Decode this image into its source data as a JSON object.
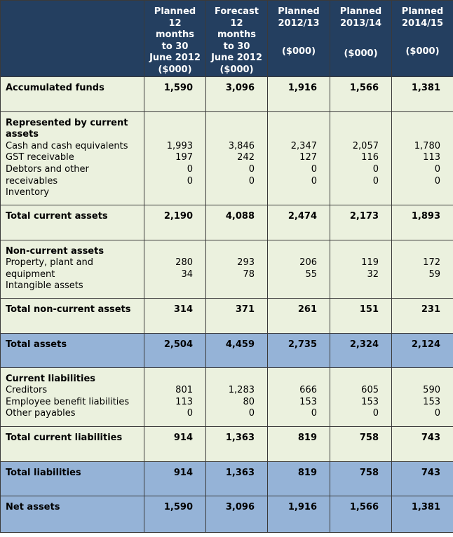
{
  "header": {
    "col1": [
      "Planned",
      "12",
      "months",
      "to 30",
      "June 2012",
      "($000)"
    ],
    "col2": [
      "Forecast",
      "12",
      "months",
      "to 30",
      "June 2012",
      "($000)"
    ],
    "col3": {
      "title": "Planned",
      "period": "2012/13",
      "unit": "($000)"
    },
    "col4": {
      "title": "Planned",
      "period": "2013/14",
      "unit": "($000)"
    },
    "col5": {
      "title": "Planned",
      "period": "2014/15",
      "unit": "($000)"
    }
  },
  "rows": {
    "accumulated_funds": {
      "label": "Accumulated funds",
      "values": [
        "1,590",
        "3,096",
        "1,916",
        "1,566",
        "1,381"
      ]
    },
    "current_assets": {
      "heading": "Represented by current assets",
      "items": [
        "Cash and cash equivalents",
        "GST receivable",
        "Debtors and other receivables",
        "Inventory"
      ],
      "values": [
        [
          "1,993",
          "197",
          "0",
          "0"
        ],
        [
          "3,846",
          "242",
          "0",
          "0"
        ],
        [
          "2,347",
          "127",
          "0",
          "0"
        ],
        [
          "2,057",
          "116",
          "0",
          "0"
        ],
        [
          "1,780",
          "113",
          "0",
          "0"
        ]
      ]
    },
    "total_current_assets": {
      "label": "Total current assets",
      "values": [
        "2,190",
        "4,088",
        "2,474",
        "2,173",
        "1,893"
      ]
    },
    "non_current_assets": {
      "heading": "Non-current assets",
      "items": [
        "Property, plant and equipment",
        "Intangible assets"
      ],
      "values": [
        [
          "280",
          "34"
        ],
        [
          "293",
          "78"
        ],
        [
          "206",
          "55"
        ],
        [
          "119",
          "32"
        ],
        [
          "172",
          "59"
        ]
      ]
    },
    "total_non_current_assets": {
      "label": "Total non-current assets",
      "values": [
        "314",
        "371",
        "261",
        "151",
        "231"
      ]
    },
    "total_assets": {
      "label": "Total assets",
      "values": [
        "2,504",
        "4,459",
        "2,735",
        "2,324",
        "2,124"
      ]
    },
    "current_liabilities": {
      "heading": "Current liabilities",
      "items": [
        "Creditors",
        "Employee benefit liabilities",
        "Other payables"
      ],
      "values": [
        [
          "801",
          "113",
          "0"
        ],
        [
          "1,283",
          "80",
          "0"
        ],
        [
          "666",
          "153",
          "0"
        ],
        [
          "605",
          "153",
          "0"
        ],
        [
          "590",
          "153",
          "0"
        ]
      ]
    },
    "total_current_liabilities": {
      "label": "Total current liabilities",
      "values": [
        "914",
        "1,363",
        "819",
        "758",
        "743"
      ]
    },
    "total_liabilities": {
      "label": "Total liabilities",
      "values": [
        "914",
        "1,363",
        "819",
        "758",
        "743"
      ]
    },
    "net_assets": {
      "label": "Net assets",
      "values": [
        "1,590",
        "3,096",
        "1,916",
        "1,566",
        "1,381"
      ]
    }
  }
}
